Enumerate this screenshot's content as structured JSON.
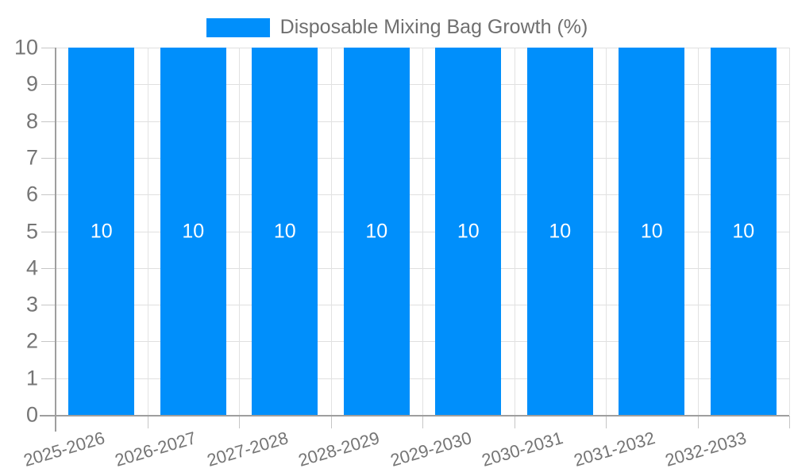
{
  "legend": {
    "label": "Disposable Mixing Bag Growth (%)"
  },
  "colors": {
    "bar": "#008ffb",
    "axis_line": "#9e9e9e",
    "gridline": "#e0e0e0",
    "tick": "#c6c6c6",
    "axis_text": "#757575",
    "legend_text": "#6f6f6f",
    "bar_label_text": "#ffffff"
  },
  "chart_data": {
    "type": "bar",
    "title": "",
    "xlabel": "",
    "ylabel": "",
    "categories": [
      "2025-2026",
      "2026-2027",
      "2027-2028",
      "2028-2029",
      "2029-2030",
      "2030-2031",
      "2031-2032",
      "2032-2033"
    ],
    "series": [
      {
        "name": "Disposable Mixing Bag Growth (%)",
        "color": "#008ffb",
        "values": [
          10,
          10,
          10,
          10,
          10,
          10,
          10,
          10
        ]
      }
    ],
    "bar_value_labels": [
      "10",
      "10",
      "10",
      "10",
      "10",
      "10",
      "10",
      "10"
    ],
    "ylim": [
      0,
      10
    ],
    "yticks": [
      0,
      1,
      2,
      3,
      4,
      5,
      6,
      7,
      8,
      9,
      10
    ],
    "grid": true,
    "legend_position": "top"
  }
}
